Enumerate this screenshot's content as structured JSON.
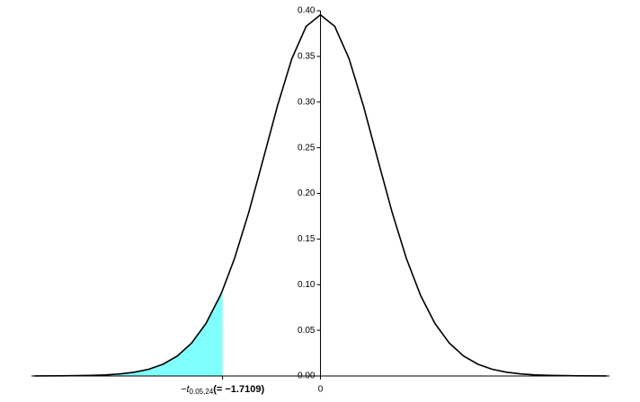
{
  "chart_data": {
    "type": "line",
    "x": [
      -5,
      -4.5,
      -4,
      -3.75,
      -3.5,
      -3.25,
      -3,
      -2.75,
      -2.5,
      -2.25,
      -2,
      -1.75,
      -1.7109,
      -1.5,
      -1.25,
      -1,
      -0.75,
      -0.5,
      -0.25,
      0,
      0.25,
      0.5,
      0.75,
      1,
      1.25,
      1.5,
      1.75,
      2,
      2.25,
      2.5,
      2.75,
      3,
      3.25,
      3.5,
      3.75,
      4,
      4.5,
      5
    ],
    "series": [
      {
        "color": "#000000",
        "values": [
          0.0001,
          0.0002,
          0.0007,
          0.0012,
          0.0023,
          0.0041,
          0.0074,
          0.0129,
          0.0219,
          0.0362,
          0.0576,
          0.0882,
          0.0939,
          0.129,
          0.1798,
          0.2375,
          0.2961,
          0.3475,
          0.3829,
          0.3956,
          0.3829,
          0.3475,
          0.2961,
          0.2375,
          0.1798,
          0.129,
          0.0882,
          0.0576,
          0.0362,
          0.0219,
          0.0129,
          0.0074,
          0.0041,
          0.0023,
          0.0012,
          0.0007,
          0.0002,
          0.0001
        ]
      }
    ],
    "shade_color": "#80ffff",
    "critical_value": -1.7109,
    "critical_prefix": "−t",
    "critical_subscript": "0.05,24",
    "critical_label": "(= −1.7109)",
    "xlim": [
      -5.05,
      5.05
    ],
    "xticks": [
      0
    ],
    "ylim": [
      0,
      0.4
    ],
    "yticks": [
      {
        "value": 0,
        "label": "0.00"
      },
      {
        "value": 0.05,
        "label": "0.05"
      },
      {
        "value": 0.1,
        "label": "0.10"
      },
      {
        "value": 0.15,
        "label": "0.15"
      },
      {
        "value": 0.2,
        "label": "0.20"
      },
      {
        "value": 0.25,
        "label": "0.25"
      },
      {
        "value": 0.3,
        "label": "0.30"
      },
      {
        "value": 0.35,
        "label": "0.35"
      },
      {
        "value": 0.4,
        "label": "0.40"
      }
    ]
  }
}
